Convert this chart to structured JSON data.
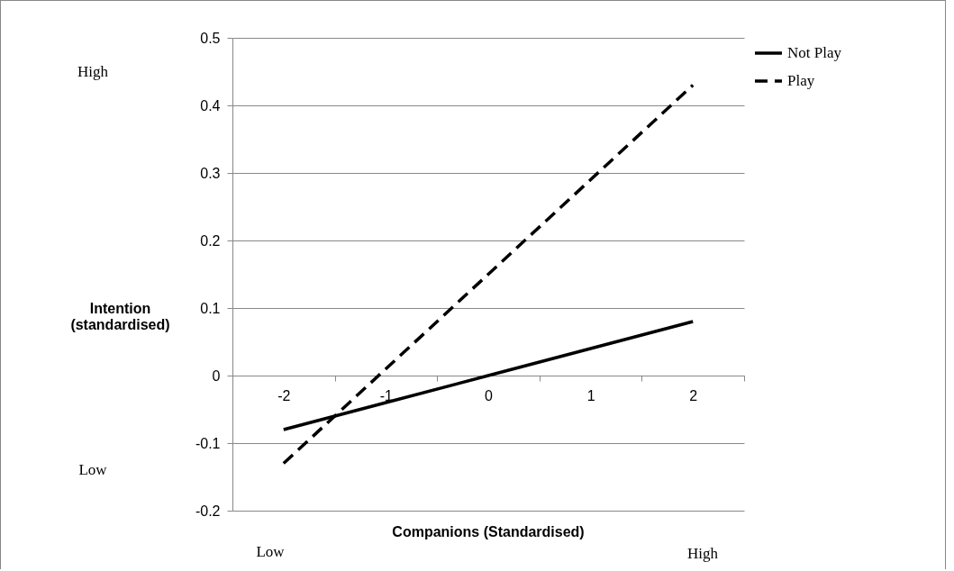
{
  "chart_data": {
    "type": "line",
    "xlabel": "Companions (Standardised)",
    "ylabel": "Intention (standardised)",
    "categories": [
      "-2",
      "-1",
      "0",
      "1",
      "2"
    ],
    "series": [
      {
        "name": "Not Play",
        "color": "#000000",
        "line_style": "solid",
        "values": [
          -0.08,
          -0.04,
          0,
          0.04,
          0.08
        ]
      },
      {
        "name": "Play",
        "color": "#000000",
        "line_style": "dashed",
        "values": [
          -0.13,
          0.01,
          0.15,
          0.29,
          0.43
        ]
      }
    ],
    "ylim": [
      -0.2,
      0.5
    ],
    "yticks": [
      -0.2,
      -0.1,
      0,
      0.1,
      0.2,
      0.3,
      0.4,
      0.5
    ],
    "grid": "y",
    "legend": "right",
    "marker": "none",
    "annotations": [
      "High",
      "Low",
      "Low",
      "High"
    ]
  }
}
